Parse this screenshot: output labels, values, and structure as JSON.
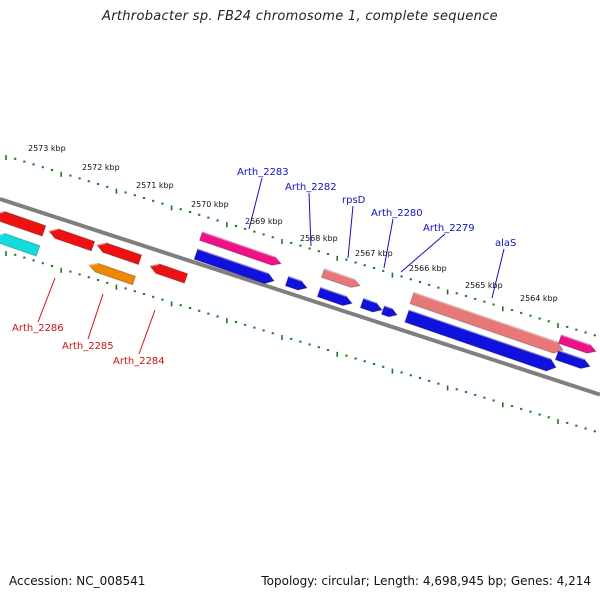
{
  "title": "Arthrobacter sp. FB24 chromosome 1, complete sequence",
  "footer": {
    "accession": "Accession: NC_008541",
    "summary": "Topology: circular; Length: 4,698,945 bp; Genes: 4,214"
  },
  "colors": {
    "backbone": "#7f7f7f",
    "tick": "#1a7a1a",
    "forward_magenta": "#ee1188",
    "forward_salmon": "#e87878",
    "reverse_red": "#ee1111",
    "reverse_orange": "#ee8800",
    "reverse_cyan": "#11dddd",
    "forward_blue": "#1111dd",
    "forward_label": "#1111bb",
    "reverse_label": "#cc1111"
  },
  "kbp_ticks": [
    "2573 kbp",
    "2572 kbp",
    "2571 kbp",
    "2570 kbp",
    "2569 kbp",
    "2568 kbp",
    "2567 kbp",
    "2566 kbp",
    "2565 kbp",
    "2564 kbp"
  ],
  "gene_labels": {
    "forward": [
      "Arth_2283",
      "Arth_2282",
      "rpsD",
      "Arth_2280",
      "Arth_2279",
      "alaS"
    ],
    "reverse": [
      "Arth_2286",
      "Arth_2285",
      "Arth_2284"
    ]
  }
}
